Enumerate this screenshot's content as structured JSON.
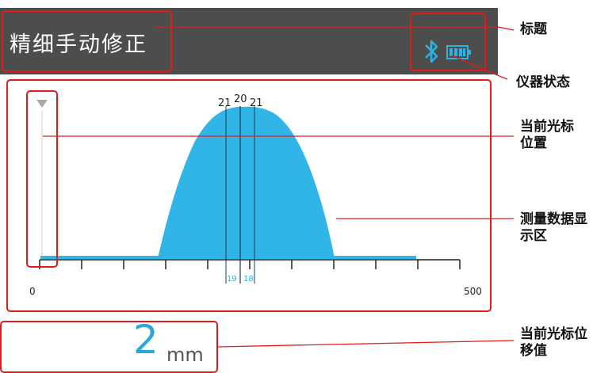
{
  "screen": {
    "title": "精细手动修正",
    "status_icons": [
      "bluetooth-icon",
      "battery-icon"
    ],
    "cursor_offset": {
      "value": "2",
      "unit": "mm"
    }
  },
  "chart": {
    "axis_min_label": "0",
    "axis_max_label": "500",
    "peak_labels": [
      "21",
      "20",
      "21"
    ],
    "bottom_labels": [
      "19",
      "18"
    ],
    "colors": {
      "fill": "#31b5e6",
      "axis": "#222222",
      "marker": "#aaaaaa"
    }
  },
  "annotations": {
    "title": "标题",
    "device_status": "仪器状态",
    "cursor_position_line1": "当前光标",
    "cursor_position_line2": "位置",
    "data_area_line1": "测量数据显",
    "data_area_line2": "示区",
    "cursor_offset_line1": "当前光标位",
    "cursor_offset_line2": "移值",
    "box_color": "#e21a1a"
  }
}
